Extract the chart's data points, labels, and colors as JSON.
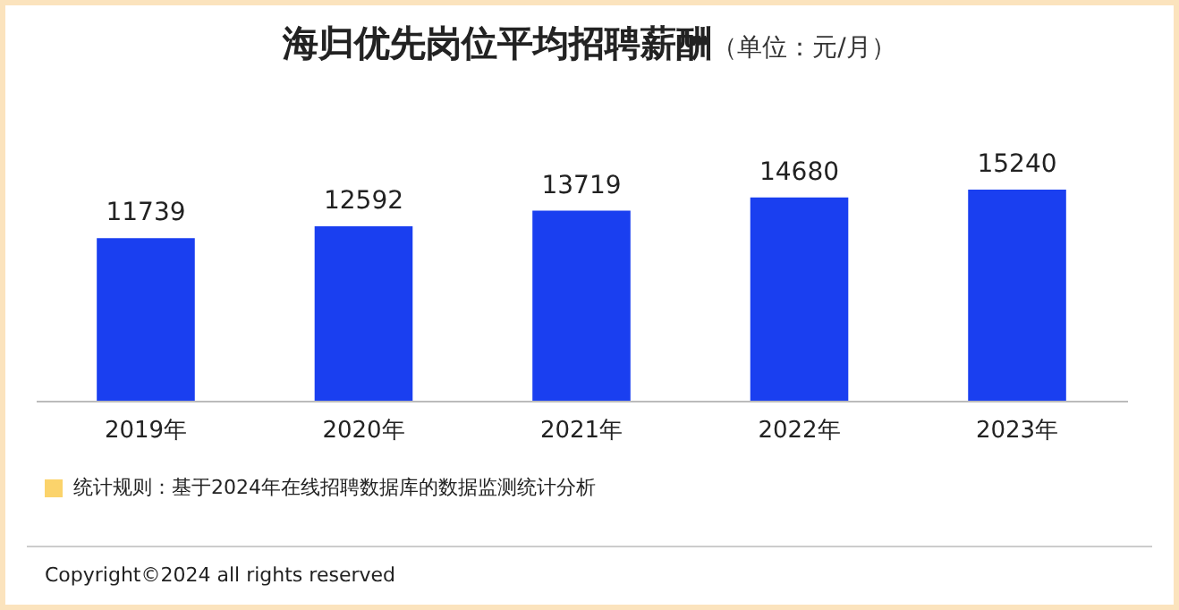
{
  "chart_data": {
    "type": "bar",
    "title": "海归优先岗位平均招聘薪酬",
    "subtitle": "（单位：元/月）",
    "categories": [
      "2019年",
      "2020年",
      "2021年",
      "2022年",
      "2023年"
    ],
    "values": [
      11739,
      12592,
      13719,
      14680,
      15240
    ],
    "color": "#1a3ff0",
    "data_labels": true,
    "annotations": [
      "统计规则：基于2024年在线招聘数据库的数据监测统计分析",
      "Copyright©2024 all rights reserved"
    ]
  }
}
